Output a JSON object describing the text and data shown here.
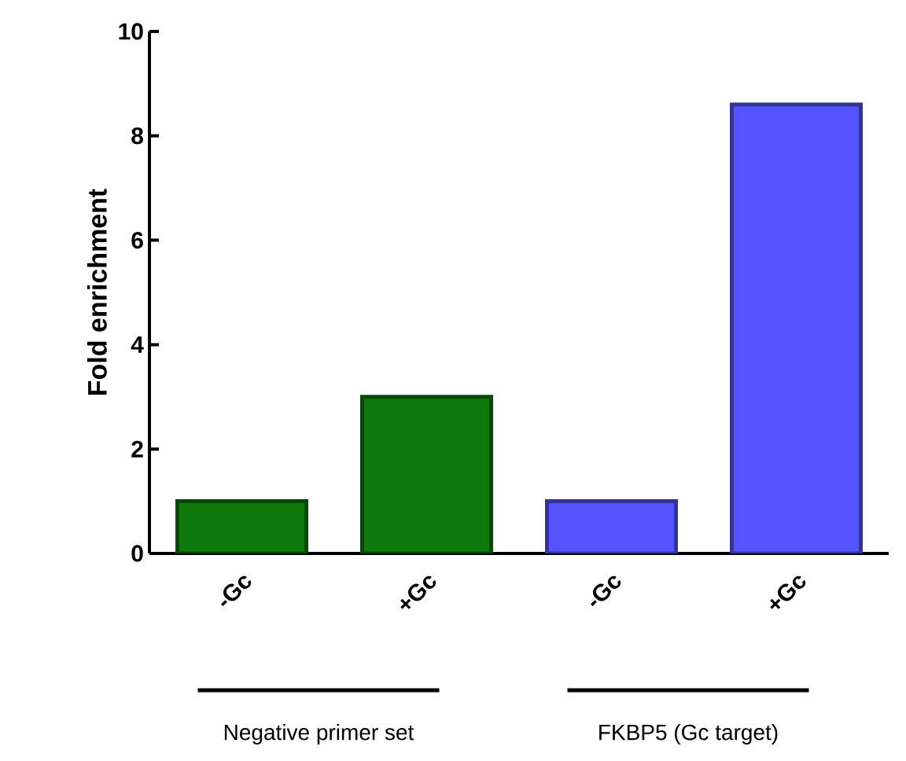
{
  "chart_data": {
    "type": "bar",
    "ylabel": "Fold enrichment",
    "categories": [
      "-Gc",
      "+Gc",
      "-Gc",
      "+Gc"
    ],
    "values": [
      1,
      3,
      1,
      8.6
    ],
    "colors": [
      "#0e7a0e",
      "#0e7a0e",
      "#5555ff",
      "#5555ff"
    ],
    "ylim": [
      0,
      10
    ],
    "yticks": [
      0,
      2,
      4,
      6,
      8,
      10
    ],
    "grid": false,
    "annotations": [
      "Negative primer set",
      "FKBP5 (Gc target)"
    ]
  }
}
